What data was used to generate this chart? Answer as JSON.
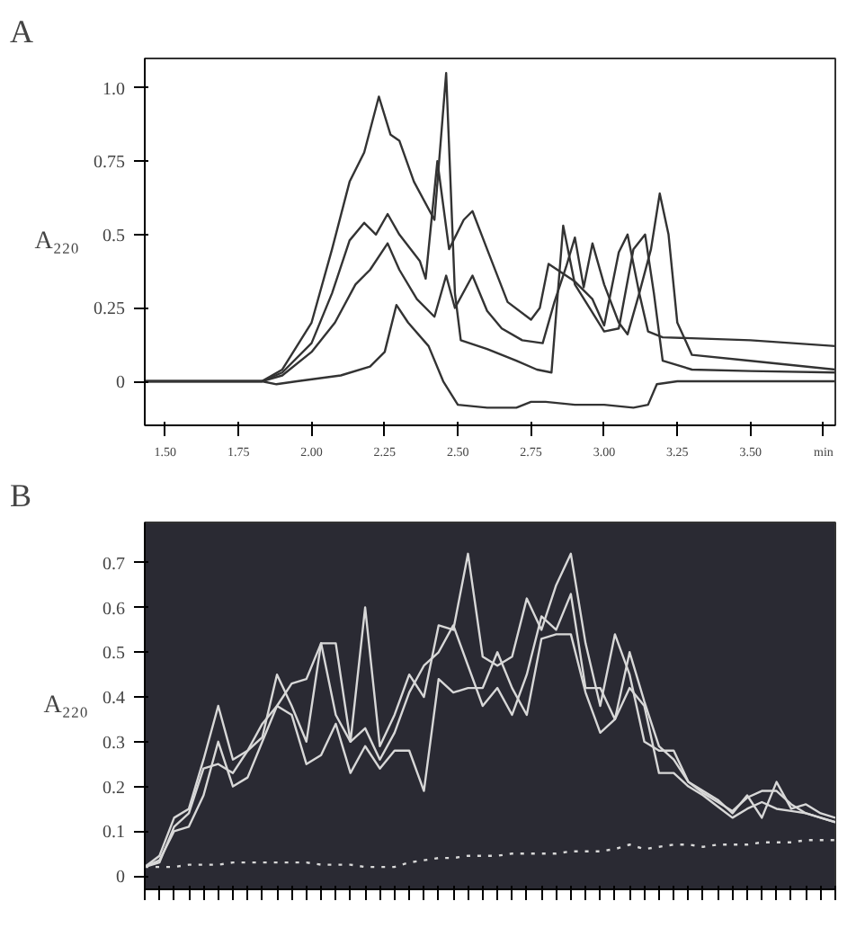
{
  "chart_data": [
    {
      "type": "line",
      "title": "A",
      "ylabel": "A₂₂₀",
      "xlim": [
        1.43,
        3.79
      ],
      "ylim": [
        -0.15,
        1.1
      ],
      "xticks": [
        {
          "value": 1.5,
          "label": "1.50"
        },
        {
          "value": 1.75,
          "label": "1.75"
        },
        {
          "value": 2.0,
          "label": "2.00"
        },
        {
          "value": 2.25,
          "label": "2.25"
        },
        {
          "value": 2.5,
          "label": "2.50"
        },
        {
          "value": 2.75,
          "label": "2.75"
        },
        {
          "value": 3.0,
          "label": "3.00"
        },
        {
          "value": 3.25,
          "label": "3.25"
        },
        {
          "value": 3.5,
          "label": "3.50"
        },
        {
          "value": 3.75,
          "label": "min"
        }
      ],
      "yticks": [
        0,
        0.25,
        0.5,
        0.75,
        {
          "value": 1.0,
          "label": "1.0"
        }
      ],
      "grid": false,
      "line_style": "solid",
      "marker": "none",
      "series": [
        {
          "color": "#333333",
          "x": [
            1.43,
            1.83,
            1.9,
            2.0,
            2.07,
            2.13,
            2.18,
            2.23,
            2.27,
            2.3,
            2.35,
            2.42,
            2.46,
            2.49,
            2.51,
            2.6,
            2.7,
            2.77,
            2.82,
            2.86,
            2.9,
            2.95,
            3.0,
            3.05,
            3.1,
            3.14,
            3.17,
            3.2,
            3.3,
            3.5,
            3.79
          ],
          "values": [
            0,
            0,
            0.04,
            0.2,
            0.45,
            0.68,
            0.78,
            0.97,
            0.84,
            0.82,
            0.68,
            0.55,
            1.05,
            0.3,
            0.14,
            0.11,
            0.07,
            0.04,
            0.03,
            0.53,
            0.33,
            0.25,
            0.17,
            0.18,
            0.45,
            0.5,
            0.3,
            0.07,
            0.04,
            0.035,
            0.03
          ]
        },
        {
          "color": "#333333",
          "x": [
            1.43,
            1.83,
            1.9,
            2.0,
            2.07,
            2.13,
            2.18,
            2.22,
            2.26,
            2.3,
            2.37,
            2.39,
            2.43,
            2.47,
            2.52,
            2.55,
            2.6,
            2.67,
            2.75,
            2.78,
            2.81,
            2.9,
            2.96,
            3.0,
            3.05,
            3.08,
            3.12,
            3.15,
            3.2,
            3.5,
            3.79
          ],
          "values": [
            0,
            0,
            0.03,
            0.13,
            0.3,
            0.48,
            0.54,
            0.5,
            0.57,
            0.5,
            0.41,
            0.35,
            0.75,
            0.45,
            0.55,
            0.58,
            0.45,
            0.27,
            0.21,
            0.25,
            0.4,
            0.34,
            0.28,
            0.19,
            0.44,
            0.5,
            0.3,
            0.17,
            0.15,
            0.14,
            0.12
          ]
        },
        {
          "color": "#333333",
          "x": [
            1.43,
            1.83,
            1.9,
            2.0,
            2.08,
            2.15,
            2.2,
            2.26,
            2.3,
            2.36,
            2.42,
            2.46,
            2.49,
            2.55,
            2.6,
            2.65,
            2.72,
            2.79,
            2.83,
            2.87,
            2.9,
            2.93,
            2.96,
            3.0,
            3.05,
            3.08,
            3.12,
            3.16,
            3.19,
            3.22,
            3.25,
            3.3,
            3.5,
            3.79
          ],
          "values": [
            0,
            0,
            0.02,
            0.1,
            0.2,
            0.33,
            0.38,
            0.47,
            0.38,
            0.28,
            0.22,
            0.36,
            0.25,
            0.36,
            0.24,
            0.18,
            0.14,
            0.13,
            0.27,
            0.39,
            0.49,
            0.32,
            0.47,
            0.33,
            0.2,
            0.16,
            0.3,
            0.45,
            0.64,
            0.5,
            0.2,
            0.09,
            0.07,
            0.04
          ]
        },
        {
          "color": "#333333",
          "x": [
            1.43,
            1.83,
            1.88,
            1.95,
            2.1,
            2.2,
            2.25,
            2.29,
            2.33,
            2.4,
            2.45,
            2.5,
            2.6,
            2.7,
            2.75,
            2.8,
            2.9,
            3.0,
            3.1,
            3.15,
            3.18,
            3.25,
            3.79
          ],
          "values": [
            0,
            0,
            -0.01,
            0.0,
            0.02,
            0.05,
            0.1,
            0.26,
            0.2,
            0.12,
            0.0,
            -0.08,
            -0.09,
            -0.09,
            -0.07,
            -0.07,
            -0.08,
            -0.08,
            -0.09,
            -0.08,
            -0.01,
            0.0,
            0.0
          ]
        }
      ]
    },
    {
      "type": "line",
      "title": "B",
      "ylabel": "A₂₂₀",
      "ylim": [
        -0.03,
        0.79
      ],
      "tick_labels": "y",
      "categories": [
        null,
        null,
        null,
        null,
        null,
        null,
        null,
        null,
        null,
        null,
        null,
        null,
        null,
        null,
        null,
        null,
        null,
        null,
        null,
        null,
        null,
        null,
        null,
        null,
        null,
        null,
        null,
        null,
        null,
        null,
        null,
        null,
        null,
        null,
        null,
        null,
        null,
        null,
        null,
        null,
        null,
        null,
        null,
        null,
        null,
        null,
        null,
        null
      ],
      "yticks": [
        0,
        0.1,
        0.2,
        0.3,
        0.4,
        0.5,
        0.6,
        0.7
      ],
      "grid": false,
      "marker": "none",
      "series": [
        {
          "color": "#d8d8d8",
          "line_style": "solid",
          "values": [
            0.02,
            0.045,
            0.13,
            0.15,
            0.26,
            0.38,
            0.26,
            0.28,
            0.31,
            0.45,
            0.38,
            0.3,
            0.52,
            0.52,
            0.3,
            0.6,
            0.29,
            0.36,
            0.45,
            0.4,
            0.56,
            0.55,
            0.72,
            0.49,
            0.47,
            0.49,
            0.62,
            0.55,
            0.65,
            0.72,
            0.52,
            0.38,
            0.54,
            0.45,
            0.3,
            0.28,
            0.28,
            0.21,
            0.19,
            0.17,
            0.14,
            0.18,
            0.13,
            0.21,
            0.15,
            0.16,
            0.14,
            0.13
          ]
        },
        {
          "color": "#d8d8d8",
          "line_style": "solid",
          "values": [
            0.02,
            0.035,
            0.1,
            0.11,
            0.18,
            0.3,
            0.2,
            0.22,
            0.3,
            0.38,
            0.36,
            0.25,
            0.27,
            0.34,
            0.23,
            0.29,
            0.24,
            0.28,
            0.28,
            0.19,
            0.44,
            0.41,
            0.42,
            0.42,
            0.5,
            0.42,
            0.36,
            0.53,
            0.54,
            0.54,
            0.41,
            0.32,
            0.35,
            0.42,
            0.38,
            0.23,
            0.23,
            0.2,
            0.18,
            0.155,
            0.13,
            0.15,
            0.165,
            0.15,
            0.145,
            0.14,
            0.13,
            0.12
          ]
        },
        {
          "color": "#d8d8d8",
          "line_style": "solid",
          "values": [
            0.02,
            0.03,
            0.11,
            0.14,
            0.24,
            0.25,
            0.23,
            0.28,
            0.34,
            0.38,
            0.43,
            0.44,
            0.52,
            0.36,
            0.3,
            0.33,
            0.26,
            0.32,
            0.41,
            0.47,
            0.5,
            0.56,
            0.47,
            0.38,
            0.42,
            0.36,
            0.45,
            0.58,
            0.55,
            0.63,
            0.42,
            0.42,
            0.35,
            0.5,
            0.39,
            0.29,
            0.26,
            0.21,
            0.185,
            0.165,
            0.145,
            0.175,
            0.19,
            0.19,
            0.16,
            0.14,
            0.13,
            0.12
          ]
        },
        {
          "color": "#d8d8d8",
          "line_style": "dotted",
          "values": [
            0.02,
            0.02,
            0.02,
            0.025,
            0.025,
            0.025,
            0.03,
            0.03,
            0.03,
            0.03,
            0.03,
            0.03,
            0.025,
            0.025,
            0.025,
            0.02,
            0.02,
            0.02,
            0.03,
            0.035,
            0.04,
            0.04,
            0.045,
            0.045,
            0.045,
            0.05,
            0.05,
            0.05,
            0.05,
            0.055,
            0.055,
            0.055,
            0.06,
            0.07,
            0.06,
            0.065,
            0.07,
            0.07,
            0.065,
            0.07,
            0.07,
            0.07,
            0.075,
            0.075,
            0.075,
            0.08,
            0.08,
            0.08
          ]
        }
      ]
    }
  ]
}
